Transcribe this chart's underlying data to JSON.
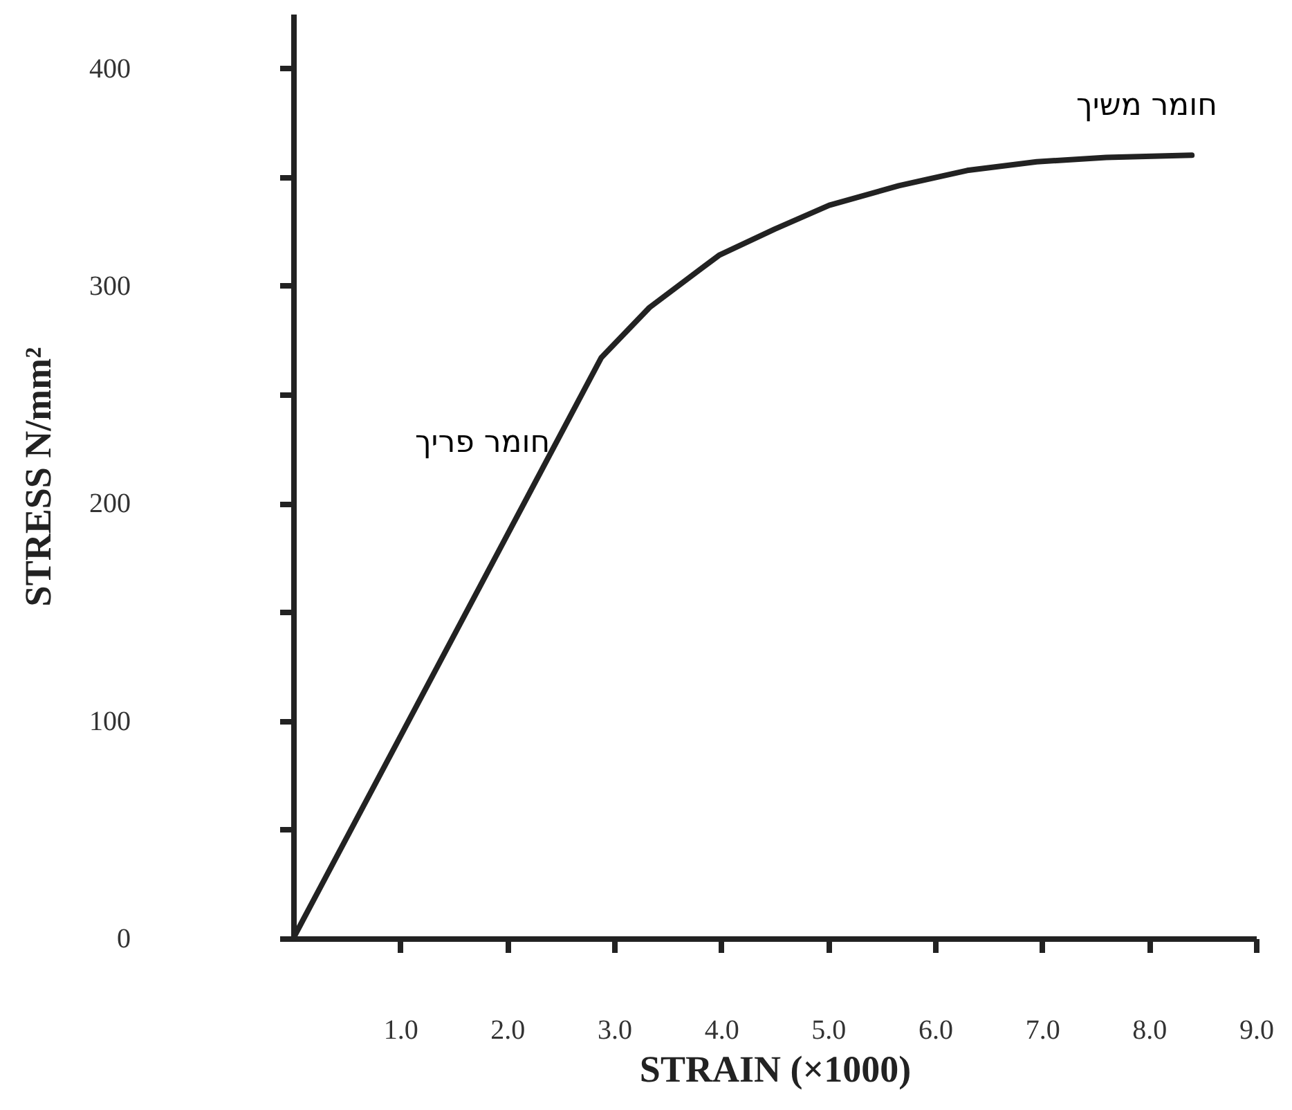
{
  "chart_data": {
    "type": "line",
    "xlabel": "STRAIN (×1000)",
    "ylabel": "STRESS N/mm²",
    "x": [
      0,
      2.88,
      3.33,
      3.98,
      4.5,
      5.01,
      5.66,
      6.3,
      6.95,
      7.6,
      8.4
    ],
    "series": [
      {
        "color": "#222222",
        "values": [
          0,
          267,
          290,
          314,
          326,
          337,
          346,
          353,
          357,
          359,
          360
        ]
      }
    ],
    "xlim": [
      0,
      9
    ],
    "ylim": [
      0,
      425
    ],
    "xticks": [
      {
        "value": 1,
        "label": "1.0"
      },
      {
        "value": 2,
        "label": "2.0"
      },
      {
        "value": 3,
        "label": "3.0"
      },
      {
        "value": 4,
        "label": "4.0"
      },
      {
        "value": 5,
        "label": "5.0"
      },
      {
        "value": 6,
        "label": "6.0"
      },
      {
        "value": 7,
        "label": "7.0"
      },
      {
        "value": 8,
        "label": "8.0"
      },
      {
        "value": 9,
        "label": "9.0"
      }
    ],
    "yticks": [
      0,
      {
        "value": 50,
        "label": null
      },
      100,
      {
        "value": 150,
        "label": null
      },
      200,
      {
        "value": 250,
        "label": null
      },
      300,
      {
        "value": 350,
        "label": null
      },
      400
    ],
    "annotations": [
      {
        "text": "חומר פריך",
        "x": 2.4,
        "y": 228
      },
      "חומר משיך"
    ],
    "grid": false,
    "marker": "none",
    "line_style": "solid"
  }
}
